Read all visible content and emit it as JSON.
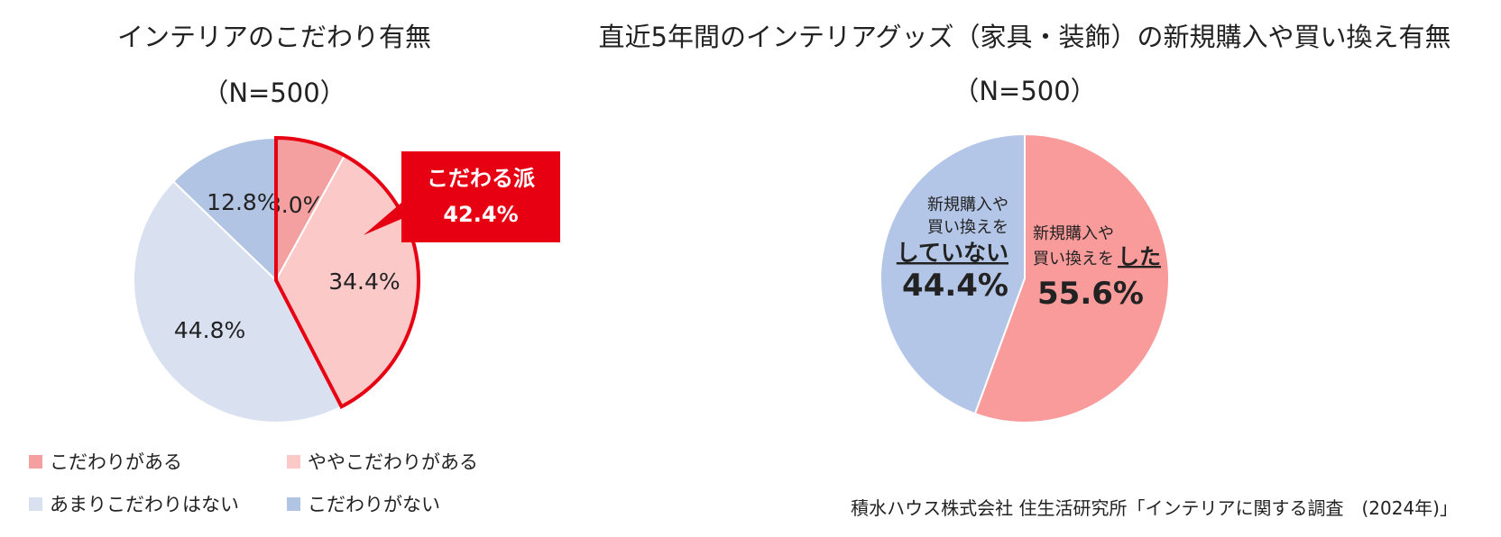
{
  "chart_data": [
    {
      "type": "pie",
      "title": "インテリアのこだわり有無",
      "subtitle": "（N=500）",
      "categories": [
        "こだわりがある",
        "ややこだわりがある",
        "あまりこだわりはない",
        "こだわりがない"
      ],
      "values": [
        8.0,
        34.4,
        44.8,
        12.8
      ],
      "data_labels": [
        "8.0%",
        "34.4%",
        "44.8%",
        "12.8%"
      ],
      "colors": [
        "#f4a0a0",
        "#fcc9c9",
        "#d9e1f1",
        "#b1c4e4"
      ],
      "legend_position": "bottom",
      "callout": {
        "label": "こだわる派",
        "value": "42.4%",
        "color": "#e60012"
      }
    },
    {
      "type": "pie",
      "title": "直近5年間のインテリアグッズ（家具・装飾）の新規購入や買い換え有無",
      "subtitle": "（N=500）",
      "categories": [
        "新規購入や買い換えをした",
        "新規購入や買い換えをしていない"
      ],
      "values": [
        55.6,
        44.4
      ],
      "data_labels": [
        "55.6%",
        "44.4%"
      ],
      "label_lines": [
        [
          "新規購入や",
          "買い換えを",
          "した"
        ],
        [
          "新規購入や",
          "買い換えを",
          "していない"
        ]
      ],
      "colors": [
        "#fa9b9b",
        "#b4c6e7"
      ]
    }
  ],
  "source": "積水ハウス株式会社 住生活研究所「インテリアに関する調査　(2024年)」"
}
